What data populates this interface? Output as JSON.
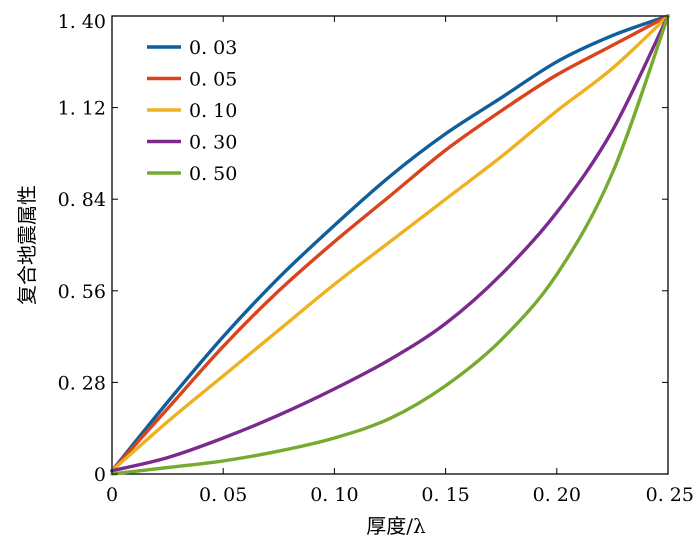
{
  "chart_data": {
    "type": "line",
    "title": "",
    "xlabel": "厚度/λ",
    "ylabel": "复合地震属性",
    "xlim": [
      0,
      0.25
    ],
    "ylim": [
      0,
      1.4
    ],
    "grid": false,
    "legend_position": "top-left",
    "xticks": [
      0,
      0.05,
      0.1,
      0.15,
      0.2,
      0.25
    ],
    "xtick_labels": [
      "0",
      "0. 05",
      "0. 10",
      "0. 15",
      "0. 20",
      "0. 25"
    ],
    "yticks": [
      0,
      0.28,
      0.56,
      0.84,
      1.12,
      1.4
    ],
    "ytick_labels": [
      "0",
      "0. 28",
      "0. 56",
      "0. 84",
      "1. 12",
      "1. 40"
    ],
    "x": [
      0,
      0.025,
      0.05,
      0.075,
      0.1,
      0.125,
      0.15,
      0.175,
      0.2,
      0.225,
      0.25
    ],
    "series": [
      {
        "name": "0. 03",
        "color": "#0f5f9c",
        "values": [
          0.01,
          0.22,
          0.42,
          0.6,
          0.76,
          0.91,
          1.04,
          1.15,
          1.26,
          1.34,
          1.4
        ]
      },
      {
        "name": "0. 05",
        "color": "#d9441d",
        "values": [
          0.01,
          0.2,
          0.39,
          0.56,
          0.71,
          0.85,
          0.99,
          1.11,
          1.22,
          1.31,
          1.4
        ]
      },
      {
        "name": "0. 10",
        "color": "#eeb120",
        "values": [
          0.01,
          0.16,
          0.3,
          0.44,
          0.58,
          0.71,
          0.84,
          0.97,
          1.11,
          1.24,
          1.4
        ]
      },
      {
        "name": "0. 30",
        "color": "#7a2b8d",
        "values": [
          0.01,
          0.05,
          0.11,
          0.18,
          0.26,
          0.35,
          0.46,
          0.61,
          0.8,
          1.05,
          1.4
        ]
      },
      {
        "name": "0. 50",
        "color": "#77ab30",
        "values": [
          0.0,
          0.02,
          0.04,
          0.07,
          0.11,
          0.17,
          0.27,
          0.41,
          0.61,
          0.92,
          1.4
        ]
      }
    ]
  }
}
